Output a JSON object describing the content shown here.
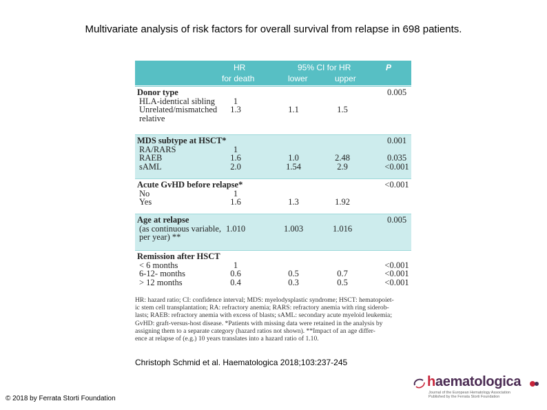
{
  "title": "Multivariate analysis of risk factors for overall survival from relapse in 698 patients.",
  "table": {
    "headers": {
      "hr_line1": "HR",
      "hr_line2": "for death",
      "ci": "95% CI for HR",
      "lower": "lower",
      "upper": "upper",
      "p": "P"
    },
    "sections": [
      {
        "label": "Donor type",
        "p": "0.005",
        "rows": [
          {
            "label": "HLA-identical sibling",
            "hr": "1",
            "lower": "",
            "upper": "",
            "p": ""
          },
          {
            "label": "Unrelated/mismatched",
            "hr": "1.3",
            "lower": "1.1",
            "upper": "1.5",
            "p": ""
          },
          {
            "label": "relative",
            "hr": "",
            "lower": "",
            "upper": "",
            "p": ""
          }
        ]
      },
      {
        "label": "MDS subtype at HSCT*",
        "p": "0.001",
        "rows": [
          {
            "label": "RA/RARS",
            "hr": "1",
            "lower": "",
            "upper": "",
            "p": ""
          },
          {
            "label": "RAEB",
            "hr": "1.6",
            "lower": "1.0",
            "upper": "2.48",
            "p": "0.035"
          },
          {
            "label": "sAML",
            "hr": "2.0",
            "lower": "1.54",
            "upper": "2.9",
            "p": "<0.001"
          }
        ]
      },
      {
        "label": "Acute GvHD before relapse*",
        "p": "<0.001",
        "rows": [
          {
            "label": "No",
            "hr": "1",
            "lower": "",
            "upper": "",
            "p": ""
          },
          {
            "label": "Yes",
            "hr": "1.6",
            "lower": "1.3",
            "upper": "1.92",
            "p": ""
          }
        ]
      },
      {
        "label": "Age at relapse",
        "p": "0.005",
        "rows": [
          {
            "label": "(as continuous variable,",
            "hr": "1.010",
            "lower": "1.003",
            "upper": "1.016",
            "p": ""
          },
          {
            "label": "per year) **",
            "hr": "",
            "lower": "",
            "upper": "",
            "p": ""
          }
        ]
      },
      {
        "label": "Remission after HSCT",
        "p": "",
        "rows": [
          {
            "label": "< 6 months",
            "hr": "1",
            "lower": "",
            "upper": "",
            "p": "<0.001"
          },
          {
            "label": "6-12- months",
            "hr": "0.6",
            "lower": "0.5",
            "upper": "0.7",
            "p": "<0.001"
          },
          {
            "label": "> 12 months",
            "hr": "0.4",
            "lower": "0.3",
            "upper": "0.5",
            "p": "<0.001"
          }
        ]
      }
    ]
  },
  "footnote": [
    "HR: hazard ratio; CI: confidence interval; MDS: myelodysplastic syndrome; HSCT: hematopoiet-",
    "ic stem cell transplantation; RA: refractory anemia; RARS: refractory anemia with ring siderob-",
    "lasts; RAEB: refractory anemia with excess of blasts; sAML: secondary acute myeloid leukemia;",
    "GvHD: graft-versus-host disease. *Patients with missing data were retained in the analysis by",
    "assigning them to a separate category (hazard ratios not shown). **Impact of an age differ-",
    "ence at relapse of (e.g.) 10 years translates into a hazard ratio of 1.10."
  ],
  "citation": "Christoph Schmid et al. Haematologica 2018;103:237-245",
  "copyright": "© 2018 by Ferrata Storti Foundation",
  "logo": {
    "name_first": "h",
    "name_rest": "aematologica",
    "subtitle1": "Journal of the European Hematology Association",
    "subtitle2": "Published by the Ferrata Storti Foundation",
    "colors": {
      "primary": "#4a2a52",
      "accent": "#c8243a"
    }
  },
  "colors": {
    "header": "#57bfc4",
    "tint": "#cdeced"
  }
}
